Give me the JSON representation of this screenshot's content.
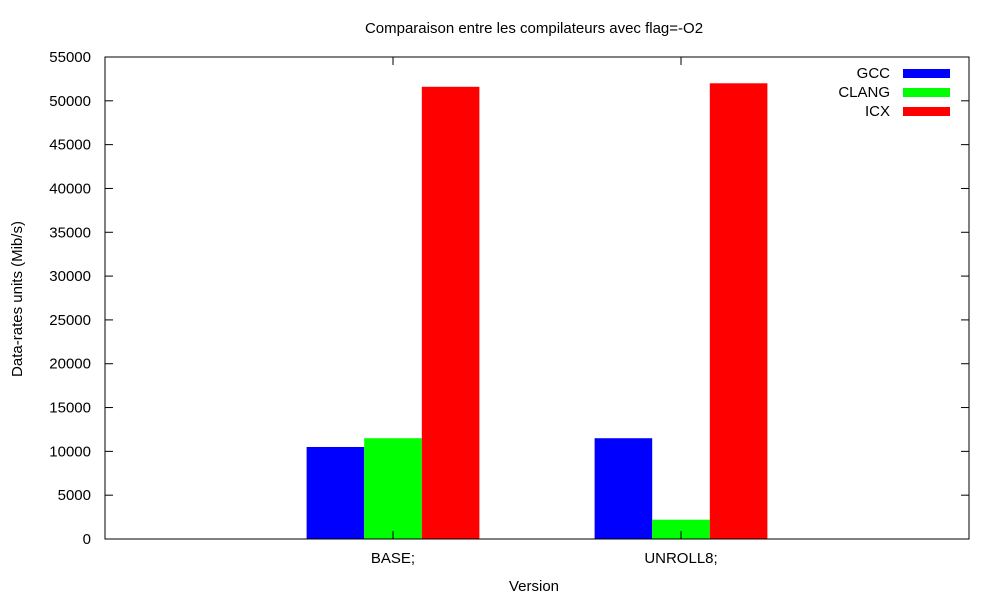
{
  "chart_data": {
    "type": "bar",
    "title": "Comparaison entre les compilateurs avec flag=-O2",
    "xlabel": "Version",
    "ylabel": "Data-rates units (Mib/s)",
    "ylim": [
      0,
      55000
    ],
    "yticks": [
      0,
      5000,
      10000,
      15000,
      20000,
      25000,
      30000,
      35000,
      40000,
      45000,
      50000,
      55000
    ],
    "categories": [
      "BASE;",
      "UNROLL8;"
    ],
    "series": [
      {
        "name": "GCC",
        "color": "#0000ff",
        "values": [
          10500,
          11500
        ]
      },
      {
        "name": "CLANG",
        "color": "#00ff00",
        "values": [
          11500,
          2200
        ]
      },
      {
        "name": "ICX",
        "color": "#ff0000",
        "values": [
          51600,
          52000
        ]
      }
    ],
    "legend": "top-right",
    "grid": false
  }
}
